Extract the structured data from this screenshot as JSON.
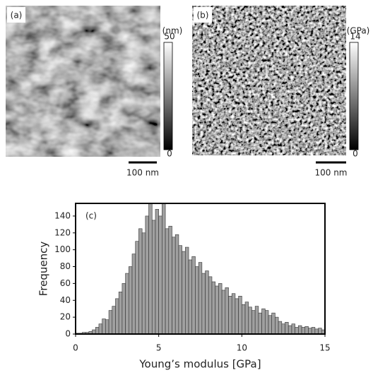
{
  "images": [
    {
      "label": "(a)",
      "colorbar": {
        "unit": "(nm)",
        "ticks": [
          0,
          50
        ]
      },
      "scalebar": "100 nm"
    },
    {
      "label": "(b)",
      "colorbar": {
        "unit": "(GPa)",
        "ticks": [
          0,
          14
        ]
      },
      "scalebar": "100 nm"
    }
  ],
  "chart_data": {
    "type": "histogram",
    "annotation": "(c)",
    "x_label": "Young’s modulus [GPa]",
    "y_label": "Frequency",
    "bins": [
      0,
      0.2,
      0.4,
      0.6,
      0.8,
      1,
      1.2,
      1.4,
      1.6,
      1.8,
      2,
      2.2,
      2.4,
      2.6,
      2.8,
      3,
      3.2,
      3.4,
      3.6,
      3.8,
      4,
      4.2,
      4.4,
      4.6,
      4.8,
      5,
      5.2,
      5.4,
      5.6,
      5.8,
      6,
      6.2,
      6.4,
      6.6,
      6.8,
      7,
      7.2,
      7.4,
      7.6,
      7.8,
      8,
      8.2,
      8.4,
      8.6,
      8.8,
      9,
      9.2,
      9.4,
      9.6,
      9.8,
      10,
      10.2,
      10.4,
      10.6,
      10.8,
      11,
      11.2,
      11.4,
      11.6,
      11.8,
      12,
      12.2,
      12.4,
      12.6,
      12.8,
      13,
      13.2,
      13.4,
      13.6,
      13.8,
      14,
      14.2,
      14.4,
      14.6,
      14.8,
      15
    ],
    "values": [
      1,
      1,
      2,
      2,
      3,
      5,
      8,
      12,
      18,
      17,
      28,
      33,
      42,
      50,
      60,
      72,
      80,
      95,
      110,
      125,
      120,
      140,
      155,
      135,
      148,
      140,
      155,
      125,
      128,
      115,
      118,
      105,
      98,
      103,
      88,
      92,
      80,
      85,
      72,
      75,
      68,
      62,
      57,
      60,
      52,
      55,
      45,
      48,
      42,
      45,
      35,
      38,
      32,
      28,
      33,
      25,
      30,
      28,
      22,
      25,
      20,
      15,
      12,
      14,
      10,
      12,
      8,
      10,
      8,
      9,
      7,
      8,
      6,
      7,
      5
    ],
    "color": "#a0a0a0",
    "xlim": [
      0,
      15
    ],
    "xticks": [
      0,
      5,
      10,
      15
    ],
    "ylim": [
      0,
      155
    ],
    "yticks": [
      0,
      20,
      40,
      60,
      80,
      100,
      120,
      140
    ]
  }
}
